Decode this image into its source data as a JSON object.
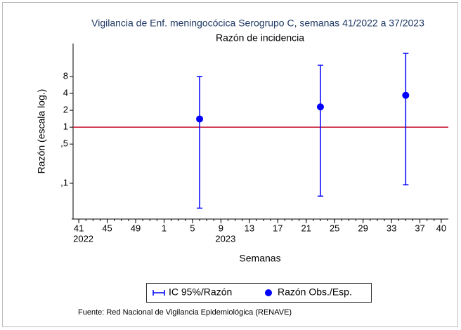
{
  "chart_data": {
    "type": "errorbar",
    "title": "Vigilancia de Enf. meningocócica Serogrupo C, semanas 41/2022 a 37/2023",
    "subtitle": "Razón de incidencia",
    "y_label": "Razón (escala log.)",
    "x_label": "Semanas",
    "source": "Fuente: Red Nacional de Vigilancia Epidemiológica (RENAVE)",
    "x": [
      "6/2023",
      "23/2023",
      "35/2023"
    ],
    "series": [
      {
        "name": "Razón Obs./Esp.",
        "color": "#0000ff",
        "values": [
          1.4,
          2.3,
          3.7
        ]
      }
    ],
    "ci": {
      "name": "IC 95%/Razón",
      "color": "#0000ff",
      "lower": [
        0.036,
        0.059,
        0.094
      ],
      "upper": [
        8,
        12.7,
        20.7
      ]
    },
    "reference_line": {
      "value": 1,
      "color": "#c8102e"
    },
    "log_y": true,
    "ylim": [
      0.023,
      31
    ],
    "yticks": [
      8,
      4,
      2,
      1,
      {
        "value": 0.5,
        "label": ",5"
      },
      {
        "value": 0.1,
        "label": ",1"
      }
    ],
    "xlim": [
      "40/2022",
      "41/2023"
    ],
    "xticks": [
      {
        "value": "41/2022",
        "label": "41"
      },
      {
        "value": "45/2022",
        "label": "45"
      },
      {
        "value": "49/2022",
        "label": "49"
      },
      {
        "value": "1/2023",
        "label": "1"
      },
      {
        "value": "5/2023",
        "label": "5"
      },
      {
        "value": "9/2023",
        "label": "9"
      },
      {
        "value": "13/2023",
        "label": "13"
      },
      {
        "value": "17/2023",
        "label": "17"
      },
      {
        "value": "21/2023",
        "label": "21"
      },
      {
        "value": "25/2023",
        "label": "25"
      },
      {
        "value": "29/2023",
        "label": "29"
      },
      {
        "value": "33/2023",
        "label": "33"
      },
      {
        "value": "37/2023",
        "label": "37"
      },
      {
        "value": "40/2023",
        "label": "40"
      }
    ],
    "xtick_years": [
      {
        "value": "41/2022",
        "label": "2022"
      },
      {
        "value": "9/2023",
        "label": "2023"
      }
    ],
    "legend_position": "bottom"
  }
}
